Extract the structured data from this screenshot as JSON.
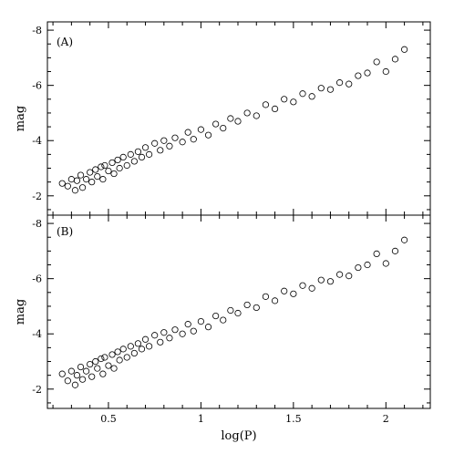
{
  "chart_data": {
    "type": "scatter",
    "xlabel": "log(P)",
    "ylabel": "mag",
    "xlim": [
      0.17,
      2.24
    ],
    "ylim": [
      -1.3,
      -8.3
    ],
    "xticks": [
      0.5,
      1,
      1.5,
      2
    ],
    "xtick_labels": [
      "0.5",
      "1",
      "1.5",
      "2"
    ],
    "yticks": [
      -2,
      -4,
      -6,
      -8
    ],
    "ytick_labels": [
      "-2",
      "-4",
      "-6",
      "-8"
    ],
    "marker": "open-circle",
    "grid": false,
    "panels": [
      {
        "label": "(A)",
        "points": [
          [
            0.25,
            -2.45
          ],
          [
            0.28,
            -2.35
          ],
          [
            0.3,
            -2.6
          ],
          [
            0.32,
            -2.2
          ],
          [
            0.33,
            -2.55
          ],
          [
            0.35,
            -2.75
          ],
          [
            0.36,
            -2.3
          ],
          [
            0.38,
            -2.6
          ],
          [
            0.4,
            -2.85
          ],
          [
            0.41,
            -2.5
          ],
          [
            0.43,
            -2.95
          ],
          [
            0.44,
            -2.7
          ],
          [
            0.46,
            -3.05
          ],
          [
            0.47,
            -2.6
          ],
          [
            0.48,
            -3.1
          ],
          [
            0.5,
            -2.9
          ],
          [
            0.52,
            -3.2
          ],
          [
            0.53,
            -2.8
          ],
          [
            0.55,
            -3.3
          ],
          [
            0.56,
            -3.0
          ],
          [
            0.58,
            -3.4
          ],
          [
            0.6,
            -3.1
          ],
          [
            0.62,
            -3.5
          ],
          [
            0.64,
            -3.25
          ],
          [
            0.66,
            -3.6
          ],
          [
            0.68,
            -3.4
          ],
          [
            0.7,
            -3.75
          ],
          [
            0.72,
            -3.5
          ],
          [
            0.75,
            -3.9
          ],
          [
            0.78,
            -3.65
          ],
          [
            0.8,
            -4.0
          ],
          [
            0.83,
            -3.8
          ],
          [
            0.86,
            -4.1
          ],
          [
            0.9,
            -3.95
          ],
          [
            0.93,
            -4.3
          ],
          [
            0.96,
            -4.05
          ],
          [
            1.0,
            -4.4
          ],
          [
            1.04,
            -4.2
          ],
          [
            1.08,
            -4.6
          ],
          [
            1.12,
            -4.45
          ],
          [
            1.16,
            -4.8
          ],
          [
            1.2,
            -4.7
          ],
          [
            1.25,
            -5.0
          ],
          [
            1.3,
            -4.9
          ],
          [
            1.35,
            -5.3
          ],
          [
            1.4,
            -5.15
          ],
          [
            1.45,
            -5.5
          ],
          [
            1.5,
            -5.4
          ],
          [
            1.55,
            -5.7
          ],
          [
            1.6,
            -5.6
          ],
          [
            1.65,
            -5.9
          ],
          [
            1.7,
            -5.85
          ],
          [
            1.75,
            -6.1
          ],
          [
            1.8,
            -6.05
          ],
          [
            1.85,
            -6.35
          ],
          [
            1.9,
            -6.45
          ],
          [
            1.95,
            -6.85
          ],
          [
            2.0,
            -6.5
          ],
          [
            2.05,
            -6.95
          ],
          [
            2.1,
            -7.3
          ]
        ]
      },
      {
        "label": "(B)",
        "points": [
          [
            0.25,
            -2.55
          ],
          [
            0.28,
            -2.3
          ],
          [
            0.3,
            -2.65
          ],
          [
            0.32,
            -2.15
          ],
          [
            0.33,
            -2.5
          ],
          [
            0.35,
            -2.8
          ],
          [
            0.36,
            -2.35
          ],
          [
            0.38,
            -2.65
          ],
          [
            0.4,
            -2.9
          ],
          [
            0.41,
            -2.45
          ],
          [
            0.43,
            -3.0
          ],
          [
            0.44,
            -2.75
          ],
          [
            0.46,
            -3.1
          ],
          [
            0.47,
            -2.55
          ],
          [
            0.48,
            -3.15
          ],
          [
            0.5,
            -2.85
          ],
          [
            0.52,
            -3.25
          ],
          [
            0.53,
            -2.75
          ],
          [
            0.55,
            -3.35
          ],
          [
            0.56,
            -3.05
          ],
          [
            0.58,
            -3.45
          ],
          [
            0.6,
            -3.15
          ],
          [
            0.62,
            -3.55
          ],
          [
            0.64,
            -3.3
          ],
          [
            0.66,
            -3.65
          ],
          [
            0.68,
            -3.45
          ],
          [
            0.7,
            -3.8
          ],
          [
            0.72,
            -3.55
          ],
          [
            0.75,
            -3.95
          ],
          [
            0.78,
            -3.7
          ],
          [
            0.8,
            -4.05
          ],
          [
            0.83,
            -3.85
          ],
          [
            0.86,
            -4.15
          ],
          [
            0.9,
            -4.0
          ],
          [
            0.93,
            -4.35
          ],
          [
            0.96,
            -4.1
          ],
          [
            1.0,
            -4.45
          ],
          [
            1.04,
            -4.25
          ],
          [
            1.08,
            -4.65
          ],
          [
            1.12,
            -4.5
          ],
          [
            1.16,
            -4.85
          ],
          [
            1.2,
            -4.75
          ],
          [
            1.25,
            -5.05
          ],
          [
            1.3,
            -4.95
          ],
          [
            1.35,
            -5.35
          ],
          [
            1.4,
            -5.2
          ],
          [
            1.45,
            -5.55
          ],
          [
            1.5,
            -5.45
          ],
          [
            1.55,
            -5.75
          ],
          [
            1.6,
            -5.65
          ],
          [
            1.65,
            -5.95
          ],
          [
            1.7,
            -5.9
          ],
          [
            1.75,
            -6.15
          ],
          [
            1.8,
            -6.1
          ],
          [
            1.85,
            -6.4
          ],
          [
            1.9,
            -6.5
          ],
          [
            1.95,
            -6.9
          ],
          [
            2.0,
            -6.55
          ],
          [
            2.05,
            -7.0
          ],
          [
            2.1,
            -7.4
          ]
        ]
      }
    ]
  }
}
